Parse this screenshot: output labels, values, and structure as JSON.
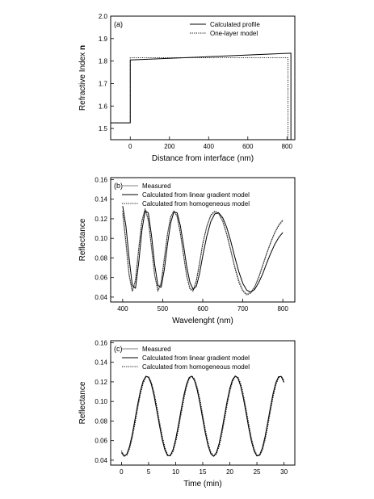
{
  "chart_data": [
    {
      "type": "line",
      "panel_label": "(a)",
      "xlabel": "Distance from interface (nm)",
      "ylabel": "Refractive Index ",
      "ylabel_bold": "n",
      "xlim": [
        -100,
        840
      ],
      "ylim": [
        1.45,
        2.0
      ],
      "xticks": [
        0,
        200,
        400,
        600,
        800
      ],
      "yticks": [
        1.5,
        1.6,
        1.7,
        1.8,
        1.9,
        2.0
      ],
      "ytick_labels": [
        "1.5",
        "1.6",
        "1.7",
        "1.8",
        "1.9",
        "2.0"
      ],
      "legend_position": "top-right",
      "series": [
        {
          "name": "Calculated profile",
          "style": "solid",
          "x": [
            -100,
            0,
            0,
            820,
            820
          ],
          "y": [
            1.525,
            1.525,
            1.805,
            1.835,
            1.45
          ]
        },
        {
          "name": "One-layer model",
          "style": "dotted",
          "x": [
            -100,
            0,
            0,
            805,
            805
          ],
          "y": [
            1.525,
            1.525,
            1.815,
            1.815,
            1.45
          ]
        }
      ]
    },
    {
      "type": "line",
      "panel_label": "(b)",
      "xlabel": "Wavelenght (nm)",
      "ylabel": "Reflectance",
      "xlim": [
        370,
        830
      ],
      "ylim": [
        0.035,
        0.162
      ],
      "xticks": [
        400,
        500,
        600,
        700,
        800
      ],
      "yticks": [
        0.04,
        0.06,
        0.08,
        0.1,
        0.12,
        0.14,
        0.16
      ],
      "ytick_labels": [
        "0.04",
        "0.06",
        "0.08",
        "0.10",
        "0.12",
        "0.14",
        "0.16"
      ],
      "legend_position": "top-right",
      "series": [
        {
          "name": "Measured",
          "style": "gray",
          "x": [
            400,
            408,
            416,
            424,
            432,
            440,
            448,
            456,
            464,
            472,
            480,
            488,
            496,
            504,
            512,
            520,
            528,
            536,
            544,
            552,
            560,
            568,
            576,
            584,
            592,
            600,
            610,
            620,
            630,
            640,
            650,
            660,
            670,
            680,
            690,
            700,
            710,
            720,
            730,
            740,
            750,
            760,
            770,
            780,
            790,
            800
          ],
          "y": [
            0.125,
            0.095,
            0.062,
            0.046,
            0.058,
            0.09,
            0.118,
            0.13,
            0.118,
            0.09,
            0.062,
            0.047,
            0.055,
            0.08,
            0.105,
            0.122,
            0.128,
            0.122,
            0.105,
            0.083,
            0.062,
            0.049,
            0.047,
            0.057,
            0.075,
            0.095,
            0.112,
            0.123,
            0.127,
            0.125,
            0.117,
            0.104,
            0.088,
            0.071,
            0.057,
            0.047,
            0.043,
            0.045,
            0.051,
            0.061,
            0.073,
            0.085,
            0.096,
            0.106,
            0.114,
            0.119
          ]
        },
        {
          "name": "Calculated from linear gradient model",
          "style": "solid",
          "x": [
            400,
            408,
            416,
            424,
            432,
            440,
            448,
            456,
            464,
            472,
            480,
            488,
            496,
            504,
            512,
            520,
            528,
            536,
            544,
            552,
            560,
            568,
            576,
            584,
            592,
            600,
            610,
            620,
            630,
            640,
            650,
            660,
            670,
            680,
            690,
            700,
            710,
            720,
            730,
            740,
            750,
            760,
            770,
            780,
            790,
            800
          ],
          "y": [
            0.133,
            0.113,
            0.08,
            0.052,
            0.049,
            0.075,
            0.108,
            0.128,
            0.126,
            0.103,
            0.073,
            0.052,
            0.05,
            0.068,
            0.094,
            0.116,
            0.127,
            0.126,
            0.113,
            0.093,
            0.071,
            0.055,
            0.048,
            0.051,
            0.064,
            0.082,
            0.102,
            0.117,
            0.125,
            0.126,
            0.121,
            0.111,
            0.097,
            0.081,
            0.066,
            0.054,
            0.047,
            0.045,
            0.048,
            0.055,
            0.064,
            0.075,
            0.085,
            0.094,
            0.101,
            0.106
          ]
        },
        {
          "name": "Calculated from homogeneous model",
          "style": "dotted",
          "x": [
            400,
            408,
            416,
            424,
            432,
            440,
            448,
            456,
            464,
            472,
            480,
            488,
            496,
            504,
            512,
            520,
            528,
            536,
            544,
            552,
            560,
            568,
            576,
            584,
            592,
            600,
            610,
            620,
            630,
            640,
            650,
            660,
            670,
            680,
            690,
            700,
            710,
            720,
            730,
            740,
            750,
            760,
            770,
            780,
            790,
            800
          ],
          "y": [
            0.128,
            0.098,
            0.064,
            0.046,
            0.056,
            0.088,
            0.117,
            0.13,
            0.12,
            0.092,
            0.063,
            0.046,
            0.053,
            0.078,
            0.104,
            0.122,
            0.128,
            0.123,
            0.106,
            0.083,
            0.061,
            0.048,
            0.046,
            0.056,
            0.074,
            0.094,
            0.112,
            0.124,
            0.128,
            0.126,
            0.118,
            0.104,
            0.087,
            0.07,
            0.055,
            0.046,
            0.042,
            0.044,
            0.05,
            0.06,
            0.072,
            0.085,
            0.096,
            0.106,
            0.113,
            0.118
          ]
        }
      ]
    },
    {
      "type": "line",
      "panel_label": "(c)",
      "xlabel": "Time (min)",
      "ylabel": "Reflectance",
      "xlim": [
        -2,
        32
      ],
      "ylim": [
        0.035,
        0.162
      ],
      "xticks": [
        0,
        5,
        10,
        15,
        20,
        25,
        30
      ],
      "yticks": [
        0.04,
        0.06,
        0.08,
        0.1,
        0.12,
        0.14,
        0.16
      ],
      "ytick_labels": [
        "0.04",
        "0.06",
        "0.08",
        "0.10",
        "0.12",
        "0.14",
        "0.16"
      ],
      "legend_position": "top-right",
      "series": [
        {
          "name": "Measured",
          "style": "gray",
          "x": [],
          "y": []
        },
        {
          "name": "Calculated from linear gradient model",
          "style": "solid",
          "x": [],
          "y": []
        },
        {
          "name": "Calculated from homogeneous model",
          "style": "dotted",
          "x": [],
          "y": []
        }
      ]
    }
  ]
}
